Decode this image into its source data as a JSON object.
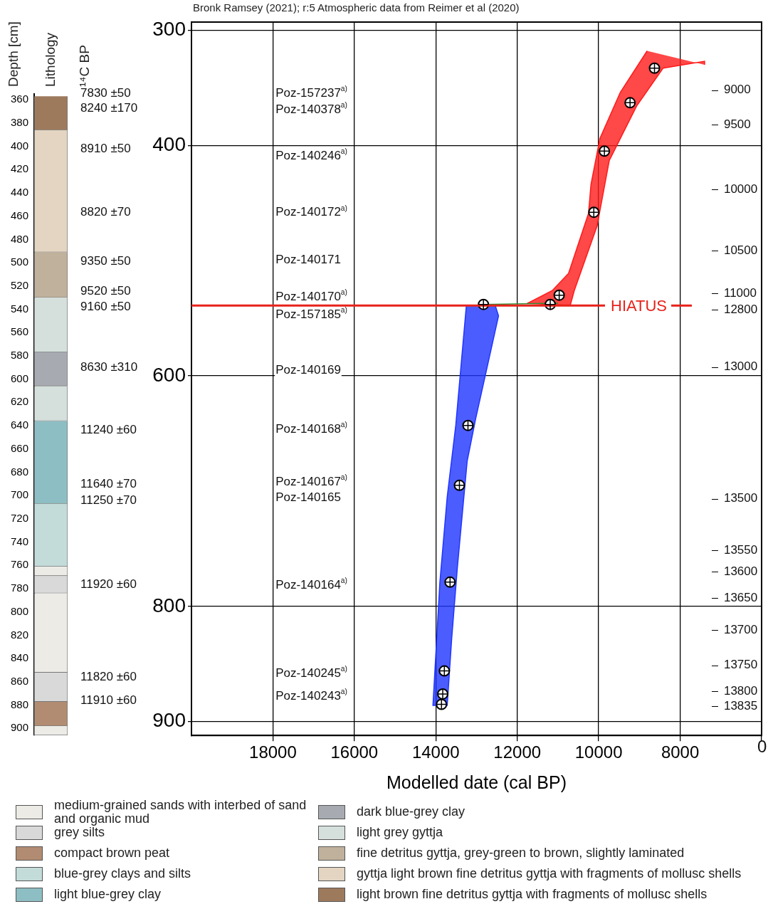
{
  "chart_data": [
    {
      "type": "bar",
      "ylabel": "Depth [cm]",
      "categories": [
        null
      ],
      "ylim": [
        906,
        355
      ],
      "yticks": [
        360,
        380,
        400,
        420,
        440,
        460,
        480,
        500,
        520,
        540,
        560,
        580,
        600,
        620,
        640,
        660,
        680,
        700,
        720,
        740,
        760,
        780,
        800,
        820,
        840,
        860,
        880,
        900
      ],
      "legend": "bottom",
      "annotations": [
        "Lithology",
        "¹⁴C BP",
        "7830 ±50",
        "8240 ±170",
        "8910 ±50",
        "8820 ±70",
        "9350 ±50",
        "9520 ±50",
        "9160 ±50",
        "8630 ±310",
        "11240 ±60",
        "11640 ±70",
        "11250 ±70",
        "11920 ±60",
        "11820 ±60",
        "11910 ±60"
      ],
      "series": [
        {
          "name": "medium-grained sands with interbed of sand and organic mud",
          "color": "#ecebe6",
          "values": [
            8
          ],
          "base": [
            761
          ]
        },
        {
          "color": "#ecebe6",
          "values": [
            68
          ],
          "base": [
            784
          ]
        },
        {
          "color": "#ecebe6",
          "values": [
            8
          ],
          "base": [
            898
          ]
        },
        {
          "name": "grey silts",
          "color": "#d9d9d9",
          "values": [
            15
          ],
          "base": [
            769
          ]
        },
        {
          "color": "#d9d9d9",
          "values": [
            25
          ],
          "base": [
            852
          ]
        },
        {
          "name": "compact brown peat",
          "color": "#b28c72",
          "values": [
            21
          ],
          "base": [
            877
          ]
        },
        {
          "name": "blue-grey clays and silts",
          "color": "#c3dcda",
          "values": [
            54
          ],
          "base": [
            707
          ]
        },
        {
          "name": "light blue-grey clay",
          "color": "#8dbec3",
          "values": [
            71
          ],
          "base": [
            636
          ]
        },
        {
          "name": "dark blue-grey clay",
          "color": "#a7abb1",
          "values": [
            29
          ],
          "base": [
            577
          ]
        },
        {
          "name": "light grey gyttja",
          "color": "#d5e0dc",
          "values": [
            47
          ],
          "base": [
            530
          ]
        },
        {
          "color": "#d5e0dc",
          "values": [
            30
          ],
          "base": [
            606
          ]
        },
        {
          "name": "fine detritus gyttja, grey-green to brown, slightly laminated",
          "color": "#c0b19c",
          "values": [
            39
          ],
          "base": [
            491
          ]
        },
        {
          "name": "gyttja light brown fine detritus gyttja with fragments of mollusc shells",
          "color": "#e3d5c1",
          "values": [
            105
          ],
          "base": [
            386
          ]
        },
        {
          "name": "light brown fine detritus gyttja with fragments of mollusc shells",
          "color": "#9e7a5c",
          "values": [
            29
          ],
          "base": [
            357
          ]
        }
      ]
    },
    {
      "type": "scatter",
      "title": "Bronk Ramsey (2021); r:5 Atmospheric data from Reimer et al (2020)",
      "xlabel": "Modelled date (cal BP)",
      "xlim": [
        20000,
        6000
      ],
      "xticks": [
        18000,
        16000,
        14000,
        12000,
        10000,
        8000,
        {
          "value": 6000,
          "label": null
        }
      ],
      "ylim": [
        912,
        293
      ],
      "yticks": [
        300,
        400,
        600,
        800,
        900
      ],
      "grid": true,
      "ref_lines": [
        {
          "axis": "y",
          "value": 539,
          "label": "HIATUS",
          "color": "#e8221b"
        }
      ],
      "annotations": [
        "Poz-157237$^{a)}$",
        "Poz-140378$^{a)}$",
        "Poz-140246$^{a)}$",
        "Poz-140172$^{a)}$",
        "Poz-140171",
        "Poz-140170$^{a)}$",
        "Poz-157185$^{a)}$",
        "Poz-140169",
        "Poz-140168$^{a)}$",
        "Poz-140167$^{a)}$",
        "Poz-140165",
        "Poz-140164$^{a)}$",
        "Poz-140245$^{a)}$",
        "Poz-140243$^{a)}$",
        "9000",
        "9500",
        "10000",
        "10500",
        "11000",
        "12800",
        "13000",
        "13500",
        "13550",
        "13600",
        "13650",
        "13700",
        "13750",
        "13800",
        "13835",
        "0"
      ],
      "series": [
        {
          "type": "area",
          "color": "#ff1a1a",
          "x": [
            8810,
            9470,
            9970,
            10190,
            10250,
            10740,
            11140,
            11750,
            10700,
            10600,
            10040,
            9740,
            9070,
            8420,
            7400,
            7400
          ],
          "values": [
            318,
            354,
            394,
            434,
            459,
            511,
            526,
            537,
            539,
            526,
            470,
            413,
            366,
            333,
            327,
            330
          ]
        },
        {
          "type": "area",
          "color": "#1f35ff",
          "x": [
            13250,
            13510,
            13720,
            13900,
            14070,
            13720,
            13610,
            13470,
            13230,
            13020,
            12460,
            12540
          ],
          "values": [
            539,
            643,
            705,
            779,
            886,
            886,
            828,
            766,
            674,
            637,
            548,
            539
          ]
        },
        {
          "type": "line",
          "color": "#2e8b2e",
          "x": [
            12830,
            11000
          ],
          "values": [
            538,
            537
          ]
        },
        {
          "type": "scatter",
          "marker": "circle",
          "color": "#000000",
          "x": [
            8630,
            9230,
            9860,
            10120,
            10970,
            11190,
            12830,
            13210,
            13420,
            13650,
            13790,
            13830,
            13860
          ],
          "values": [
            333,
            363,
            405,
            458,
            530,
            538,
            538,
            643,
            695,
            779,
            856,
            876,
            885
          ]
        }
      ]
    }
  ]
}
